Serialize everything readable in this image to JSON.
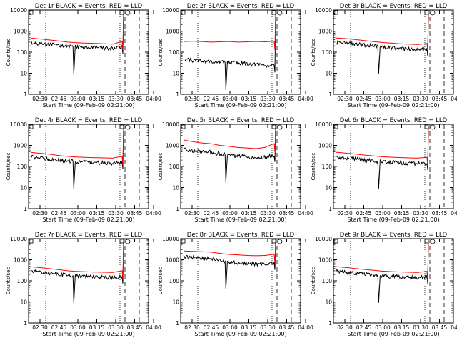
{
  "chart_data": [
    {
      "type": "line",
      "title": "Det 1r BLACK = Events, RED = LLD",
      "xlabel": "Start Time (09-Feb-09 02:21:00)",
      "ylabel": "Counts/sec",
      "scale": "log",
      "ylim": [
        1,
        10000
      ],
      "yticks": [
        "1",
        "10",
        "100",
        "1000",
        "10000"
      ],
      "xticks": [
        "02:30",
        "02:45",
        "03:00",
        "03:15",
        "03:30",
        "03:45",
        "04:00"
      ],
      "series": [
        {
          "color": "#000000",
          "values": [
            330,
            300,
            280,
            260,
            240,
            220,
            210,
            200,
            190,
            180,
            220
          ]
        },
        {
          "color": "#ff0000",
          "values": [
            460,
            420,
            380,
            340,
            300,
            280,
            270,
            260,
            250,
            240,
            320
          ]
        }
      ]
    },
    {
      "type": "line",
      "title": "Det 2r BLACK = Events, RED = LLD",
      "xlabel": "Start Time (09-Feb-09 02:21:00)",
      "ylabel": "Counts/sec",
      "scale": "log",
      "ylim": [
        1,
        10000
      ],
      "yticks": [
        "1",
        "10",
        "100",
        "1000",
        "10000"
      ],
      "xticks": [
        "02:30",
        "02:45",
        "03:00",
        "03:15",
        "03:30",
        "03:45",
        "04:00"
      ],
      "series": [
        {
          "color": "#000000",
          "values": [
            55,
            50,
            48,
            45,
            42,
            40,
            38,
            35,
            32,
            30,
            28
          ]
        },
        {
          "color": "#ff0000",
          "values": [
            320,
            330,
            320,
            300,
            310,
            320,
            300,
            310,
            320,
            310,
            330
          ]
        }
      ]
    },
    {
      "type": "line",
      "title": "Det 3r BLACK = Events, RED = LLD",
      "xlabel": "Start Time (09-Feb-09 02:21:00)",
      "ylabel": "Counts/sec",
      "scale": "log",
      "ylim": [
        1,
        10000
      ],
      "yticks": [
        "1",
        "10",
        "100",
        "1000",
        "10000"
      ],
      "xticks": [
        "02:30",
        "02:45",
        "03:00",
        "03:15",
        "03:30",
        "03:45",
        "04:00"
      ],
      "series": [
        {
          "color": "#000000",
          "values": [
            360,
            330,
            300,
            270,
            240,
            220,
            200,
            180,
            170,
            160,
            170
          ]
        },
        {
          "color": "#ff0000",
          "values": [
            470,
            440,
            400,
            360,
            320,
            290,
            270,
            250,
            240,
            230,
            260
          ]
        }
      ]
    },
    {
      "type": "line",
      "title": "Det 4r BLACK = Events, RED = LLD",
      "xlabel": "Start Time (09-Feb-09 02:21:00)",
      "ylabel": "Counts/sec",
      "scale": "log",
      "ylim": [
        1,
        10000
      ],
      "yticks": [
        "1",
        "10",
        "100",
        "1000",
        "10000"
      ],
      "xticks": [
        "02:30",
        "02:45",
        "03:00",
        "03:15",
        "03:30",
        "03:45",
        "04:00"
      ],
      "series": [
        {
          "color": "#000000",
          "values": [
            350,
            310,
            280,
            250,
            230,
            210,
            200,
            190,
            180,
            175,
            190
          ]
        },
        {
          "color": "#ff0000",
          "values": [
            460,
            420,
            380,
            330,
            300,
            280,
            270,
            260,
            255,
            250,
            300
          ]
        }
      ]
    },
    {
      "type": "line",
      "title": "Det 5r BLACK = Events, RED = LLD",
      "xlabel": "Start Time (09-Feb-09 02:21:00)",
      "ylabel": "Counts/sec",
      "scale": "log",
      "ylim": [
        1,
        10000
      ],
      "yticks": [
        "1",
        "10",
        "100",
        "1000",
        "10000"
      ],
      "xticks": [
        "02:30",
        "02:45",
        "03:00",
        "03:15",
        "03:30",
        "03:45",
        "04:00"
      ],
      "series": [
        {
          "color": "#000000",
          "values": [
            800,
            700,
            650,
            600,
            480,
            420,
            380,
            350,
            320,
            340,
            420
          ]
        },
        {
          "color": "#ff0000",
          "values": [
            1800,
            1500,
            1300,
            1200,
            1000,
            900,
            800,
            750,
            700,
            800,
            1200
          ]
        }
      ]
    },
    {
      "type": "line",
      "title": "Det 6r BLACK = Events, RED = LLD",
      "xlabel": "Start Time (09-Feb-09 02:21:00)",
      "ylabel": "Counts/sec",
      "scale": "log",
      "ylim": [
        1,
        10000
      ],
      "yticks": [
        "1",
        "10",
        "100",
        "1000",
        "10000"
      ],
      "xticks": [
        "02:30",
        "02:45",
        "03:00",
        "03:15",
        "03:30",
        "03:45",
        "04:00"
      ],
      "series": [
        {
          "color": "#000000",
          "values": [
            340,
            310,
            280,
            250,
            230,
            210,
            195,
            185,
            175,
            170,
            175
          ]
        },
        {
          "color": "#ff0000",
          "values": [
            470,
            430,
            390,
            350,
            320,
            290,
            275,
            265,
            255,
            250,
            270
          ]
        }
      ]
    },
    {
      "type": "line",
      "title": "Det 7r BLACK = Events, RED = LLD",
      "xlabel": "Start Time (09-Feb-09 02:21:00)",
      "ylabel": "Counts/sec",
      "scale": "log",
      "ylim": [
        1,
        10000
      ],
      "yticks": [
        "1",
        "10",
        "100",
        "1000",
        "10000"
      ],
      "xticks": [
        "02:30",
        "02:45",
        "03:00",
        "03:15",
        "03:30",
        "03:45",
        "04:00"
      ],
      "series": [
        {
          "color": "#000000",
          "values": [
            340,
            310,
            280,
            250,
            230,
            210,
            200,
            190,
            180,
            175,
            190
          ]
        },
        {
          "color": "#ff0000",
          "values": [
            460,
            420,
            380,
            340,
            300,
            280,
            270,
            260,
            255,
            250,
            300
          ]
        }
      ]
    },
    {
      "type": "line",
      "title": "Det 8r BLACK = Events, RED = LLD",
      "xlabel": "Start Time (09-Feb-09 02:21:00)",
      "ylabel": "Counts/sec",
      "scale": "log",
      "ylim": [
        1,
        10000
      ],
      "yticks": [
        "1",
        "10",
        "100",
        "1000",
        "10000"
      ],
      "xticks": [
        "02:30",
        "02:45",
        "03:00",
        "03:15",
        "03:30",
        "03:45",
        "04:00"
      ],
      "series": [
        {
          "color": "#000000",
          "values": [
            1700,
            1600,
            1500,
            1400,
            1100,
            950,
            850,
            800,
            750,
            780,
            850
          ]
        },
        {
          "color": "#ff0000",
          "values": [
            2600,
            2500,
            2400,
            2300,
            2000,
            1800,
            1700,
            1600,
            1550,
            1600,
            1800
          ]
        }
      ]
    },
    {
      "type": "line",
      "title": "Det 9r BLACK = Events, RED = LLD",
      "xlabel": "Start Time (09-Feb-09 02:21:00)",
      "ylabel": "Counts/sec",
      "scale": "log",
      "ylim": [
        1,
        10000
      ],
      "yticks": [
        "1",
        "10",
        "100",
        "1000",
        "10000"
      ],
      "xticks": [
        "02:30",
        "02:45",
        "03:00",
        "03:15",
        "03:30",
        "03:45",
        "04:00"
      ],
      "series": [
        {
          "color": "#000000",
          "values": [
            350,
            320,
            290,
            260,
            240,
            220,
            205,
            195,
            185,
            180,
            190
          ]
        },
        {
          "color": "#ff0000",
          "values": [
            470,
            430,
            390,
            350,
            320,
            290,
            275,
            265,
            255,
            250,
            280
          ]
        }
      ]
    }
  ]
}
